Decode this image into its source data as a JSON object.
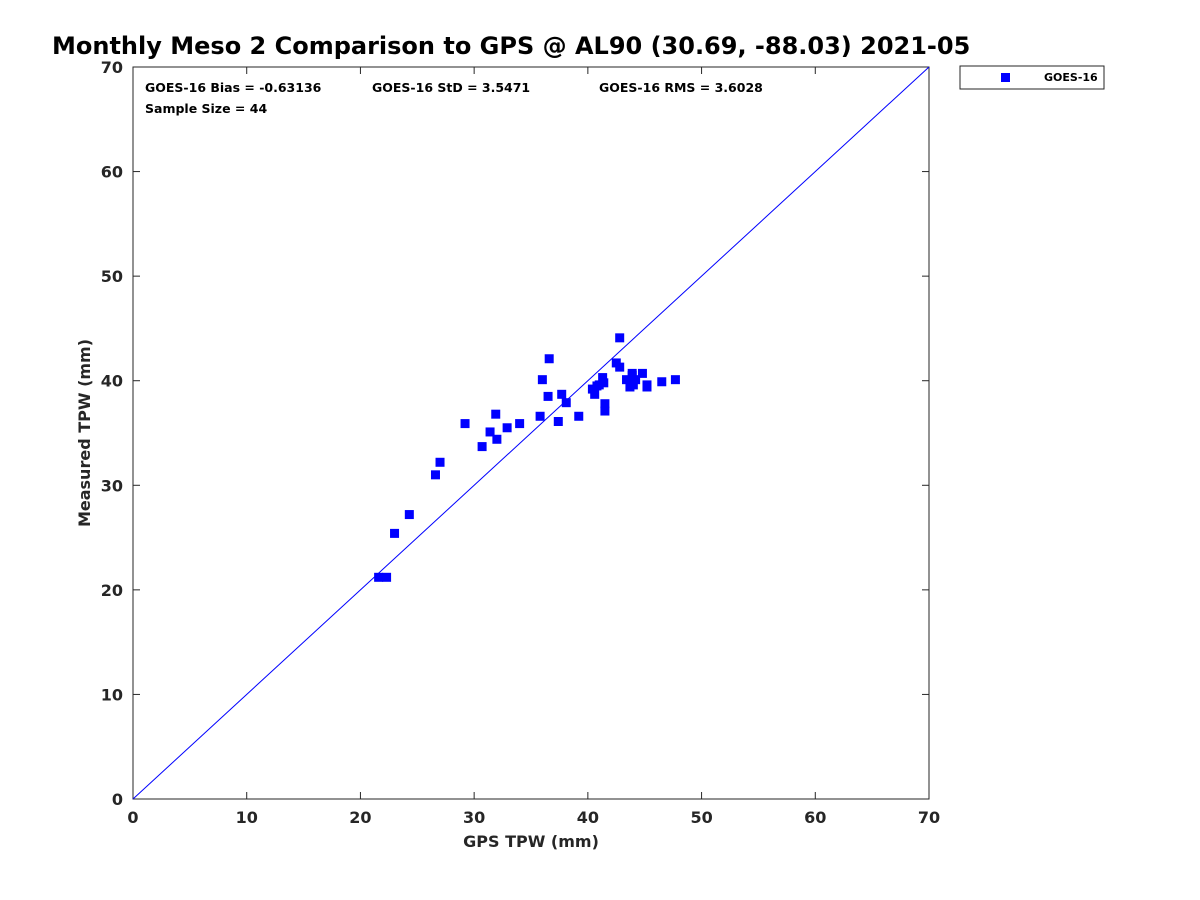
{
  "chart_data": {
    "type": "scatter",
    "title": "Monthly Meso 2 Comparison to GPS @ AL90 (30.69, -88.03) 2021-05",
    "xlabel": "GPS TPW (mm)",
    "ylabel": "Measured TPW (mm)",
    "xlim": [
      0,
      70
    ],
    "ylim": [
      0,
      70
    ],
    "xticks": [
      0,
      10,
      20,
      30,
      40,
      50,
      60,
      70
    ],
    "yticks": [
      0,
      10,
      20,
      30,
      40,
      50,
      60,
      70
    ],
    "grid": false,
    "legend_position": "outside-top-right",
    "reference_line": {
      "from": [
        0,
        0
      ],
      "to": [
        70,
        70
      ],
      "color": "#0000ff"
    },
    "stats": [
      "GOES-16 Bias = -0.63136",
      "GOES-16 StD = 3.5471",
      "GOES-16 RMS = 3.6028",
      "Sample Size = 44"
    ],
    "series": [
      {
        "name": "GOES-16",
        "color": "#0000ff",
        "marker": "square",
        "points": [
          [
            21.6,
            21.2
          ],
          [
            22.3,
            21.2
          ],
          [
            23.0,
            25.4
          ],
          [
            24.3,
            27.2
          ],
          [
            26.6,
            31.0
          ],
          [
            27.0,
            32.2
          ],
          [
            29.2,
            35.9
          ],
          [
            30.7,
            33.7
          ],
          [
            31.4,
            35.1
          ],
          [
            31.9,
            36.8
          ],
          [
            32.0,
            34.4
          ],
          [
            32.9,
            35.5
          ],
          [
            34.0,
            35.9
          ],
          [
            35.8,
            36.6
          ],
          [
            36.0,
            40.1
          ],
          [
            36.5,
            38.5
          ],
          [
            36.6,
            42.1
          ],
          [
            37.4,
            36.1
          ],
          [
            37.7,
            38.7
          ],
          [
            38.1,
            37.9
          ],
          [
            39.2,
            36.6
          ],
          [
            40.4,
            39.2
          ],
          [
            40.6,
            38.7
          ],
          [
            40.8,
            39.5
          ],
          [
            41.3,
            40.3
          ],
          [
            41.4,
            39.8
          ],
          [
            41.5,
            37.8
          ],
          [
            41.5,
            37.1
          ],
          [
            42.5,
            41.7
          ],
          [
            42.8,
            41.3
          ],
          [
            42.8,
            44.1
          ],
          [
            43.4,
            40.1
          ],
          [
            43.7,
            39.4
          ],
          [
            43.8,
            39.9
          ],
          [
            43.9,
            40.7
          ],
          [
            44.0,
            39.6
          ],
          [
            44.2,
            40.1
          ],
          [
            44.8,
            40.7
          ],
          [
            45.2,
            39.4
          ],
          [
            45.2,
            39.6
          ],
          [
            46.5,
            39.9
          ],
          [
            47.7,
            40.1
          ],
          [
            43.9,
            40.5
          ],
          [
            41.0,
            39.6
          ]
        ]
      }
    ]
  }
}
